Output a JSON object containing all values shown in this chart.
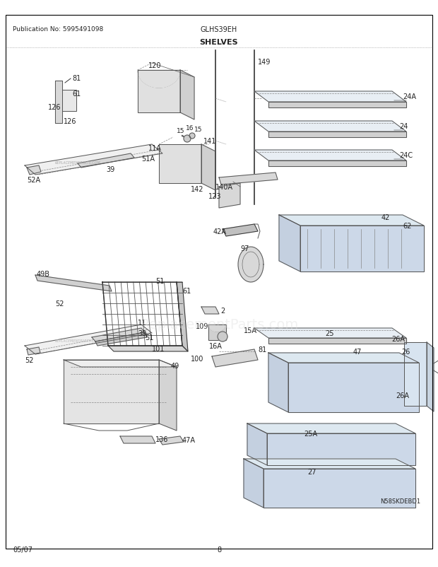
{
  "title": "SHELVES",
  "model": "GLHS39EH",
  "publication": "Publication No: 5995491098",
  "footer_date": "05/07",
  "footer_page": "8",
  "watermark": "N58SKDEBD1",
  "bg_color": "#ffffff",
  "border_color": "#000000",
  "text_color": "#222222",
  "fig_width": 6.2,
  "fig_height": 8.03,
  "dpi": 100
}
